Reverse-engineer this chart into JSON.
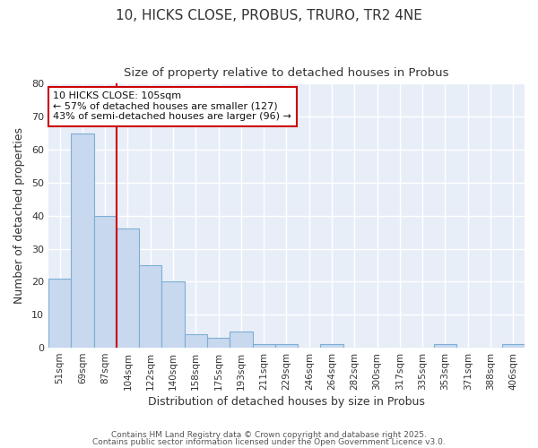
{
  "title_line1": "10, HICKS CLOSE, PROBUS, TRURO, TR2 4NE",
  "title_line2": "Size of property relative to detached houses in Probus",
  "xlabel": "Distribution of detached houses by size in Probus",
  "ylabel": "Number of detached properties",
  "categories": [
    "51sqm",
    "69sqm",
    "87sqm",
    "104sqm",
    "122sqm",
    "140sqm",
    "158sqm",
    "175sqm",
    "193sqm",
    "211sqm",
    "229sqm",
    "246sqm",
    "264sqm",
    "282sqm",
    "300sqm",
    "317sqm",
    "335sqm",
    "353sqm",
    "371sqm",
    "388sqm",
    "406sqm"
  ],
  "values": [
    21,
    65,
    40,
    36,
    25,
    20,
    4,
    3,
    5,
    1,
    1,
    0,
    1,
    0,
    0,
    0,
    0,
    1,
    0,
    0,
    1
  ],
  "bar_color": "#c8d8ef",
  "bar_edge_color": "#7bafd4",
  "fig_background_color": "#ffffff",
  "plot_background_color": "#e8eef8",
  "grid_color": "#ffffff",
  "vline_x_index": 2.5,
  "vline_color": "#cc0000",
  "annotation_text": "10 HICKS CLOSE: 105sqm\n← 57% of detached houses are smaller (127)\n43% of semi-detached houses are larger (96) →",
  "annotation_box_color": "#ffffff",
  "annotation_box_edge_color": "#cc0000",
  "ylim": [
    0,
    80
  ],
  "yticks": [
    0,
    10,
    20,
    30,
    40,
    50,
    60,
    70,
    80
  ],
  "footer_line1": "Contains HM Land Registry data © Crown copyright and database right 2025.",
  "footer_line2": "Contains public sector information licensed under the Open Government Licence v3.0."
}
